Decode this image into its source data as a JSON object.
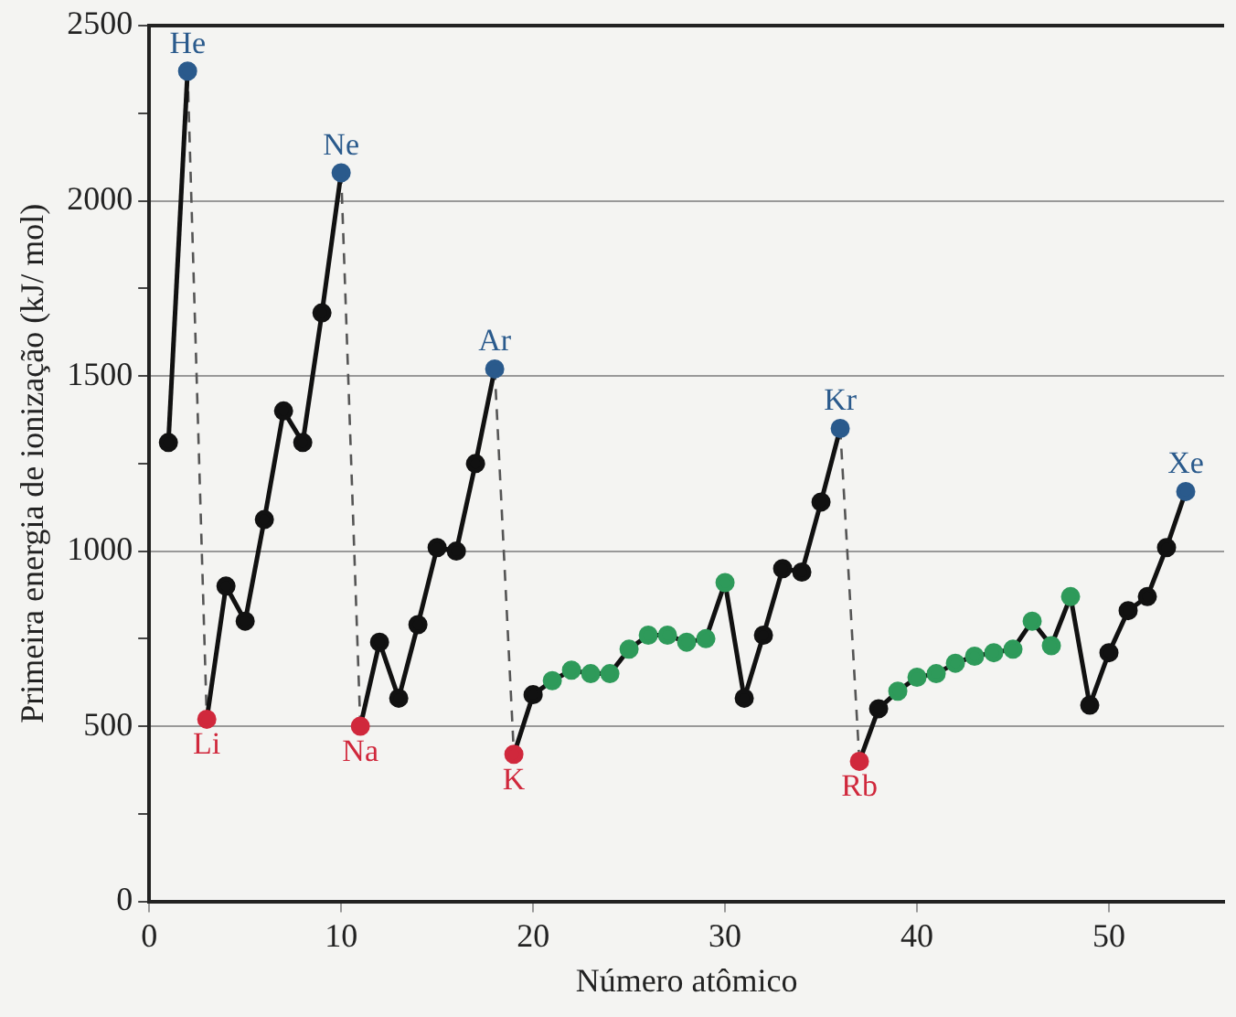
{
  "chart_data": {
    "type": "line",
    "xlabel": "Número atômico",
    "ylabel": "Primeira energia de ionização (kJ/ mol)",
    "xlim": [
      0,
      56
    ],
    "xticks": [
      0,
      10,
      20,
      30,
      40,
      50
    ],
    "ylim": [
      0,
      2500
    ],
    "yticks": [
      0,
      {
        "value": 250,
        "label": null
      },
      500,
      {
        "value": 750,
        "label": null
      },
      1000,
      {
        "value": 1250,
        "label": null
      },
      1500,
      {
        "value": 1750,
        "label": null
      },
      2000,
      {
        "value": 2250,
        "label": null
      },
      2500
    ],
    "grid": "y",
    "marker": "circle",
    "line_style": "solid",
    "series": [
      {
        "x": [
          1,
          2
        ],
        "values": [
          1310,
          2370
        ],
        "color": "#111111",
        "colors": [
          "#111111",
          "#2a5a8c"
        ]
      },
      {
        "x": [
          3,
          4,
          5,
          6,
          7,
          8,
          9,
          10
        ],
        "values": [
          520,
          900,
          800,
          1090,
          1400,
          1310,
          1680,
          2080
        ],
        "color": "#111111",
        "colors": [
          "#d0283c",
          "#111111",
          "#111111",
          "#111111",
          "#111111",
          "#111111",
          "#111111",
          "#2a5a8c"
        ]
      },
      {
        "x": [
          11,
          12,
          13,
          14,
          15,
          16,
          17,
          18
        ],
        "values": [
          500,
          740,
          580,
          790,
          1010,
          1000,
          1250,
          1520
        ],
        "color": "#111111",
        "colors": [
          "#d0283c",
          "#111111",
          "#111111",
          "#111111",
          "#111111",
          "#111111",
          "#111111",
          "#2a5a8c"
        ]
      },
      {
        "x": [
          19,
          20,
          21,
          22,
          23,
          24,
          25,
          26,
          27,
          28,
          29,
          30,
          31,
          32,
          33,
          34,
          35,
          36
        ],
        "values": [
          420,
          590,
          630,
          660,
          650,
          650,
          720,
          760,
          760,
          740,
          750,
          910,
          580,
          760,
          950,
          940,
          1140,
          1350
        ],
        "color": "#111111",
        "colors": [
          "#d0283c",
          "#111111",
          "#2e9a5a",
          "#2e9a5a",
          "#2e9a5a",
          "#2e9a5a",
          "#2e9a5a",
          "#2e9a5a",
          "#2e9a5a",
          "#2e9a5a",
          "#2e9a5a",
          "#2e9a5a",
          "#111111",
          "#111111",
          "#111111",
          "#111111",
          "#111111",
          "#2a5a8c"
        ]
      },
      {
        "x": [
          37,
          38,
          39,
          40,
          41,
          42,
          43,
          44,
          45,
          46,
          47,
          48,
          49,
          50,
          51,
          52,
          53,
          54
        ],
        "values": [
          400,
          550,
          600,
          640,
          650,
          680,
          700,
          710,
          720,
          800,
          730,
          870,
          560,
          710,
          830,
          870,
          1010,
          1170
        ],
        "color": "#111111",
        "colors": [
          "#d0283c",
          "#111111",
          "#2e9a5a",
          "#2e9a5a",
          "#2e9a5a",
          "#2e9a5a",
          "#2e9a5a",
          "#2e9a5a",
          "#2e9a5a",
          "#2e9a5a",
          "#2e9a5a",
          "#2e9a5a",
          "#111111",
          "#111111",
          "#111111",
          "#111111",
          "#111111",
          "#2a5a8c"
        ]
      },
      {
        "x": [
          2,
          3
        ],
        "values": [
          2370,
          520
        ],
        "color": "#555555",
        "line_style": "dashed",
        "marker": "none"
      },
      {
        "x": [
          10,
          11
        ],
        "values": [
          2080,
          500
        ],
        "color": "#555555",
        "line_style": "dashed",
        "marker": "none"
      },
      {
        "x": [
          18,
          19
        ],
        "values": [
          1520,
          420
        ],
        "color": "#555555",
        "line_style": "dashed",
        "marker": "none"
      },
      {
        "x": [
          36,
          37
        ],
        "values": [
          1350,
          400
        ],
        "color": "#555555",
        "line_style": "dashed",
        "marker": "none"
      }
    ],
    "annotations": [
      {
        "text": "He",
        "x": 2,
        "y": 2370
      },
      {
        "text": "Li",
        "x": 3,
        "y": 520
      },
      {
        "text": "Ne",
        "x": 10,
        "y": 2080
      },
      {
        "text": "Na",
        "x": 11,
        "y": 500
      },
      {
        "text": "Ar",
        "x": 18,
        "y": 1520
      },
      {
        "text": "K",
        "x": 19,
        "y": 420
      },
      {
        "text": "Kr",
        "x": 36,
        "y": 1350
      },
      {
        "text": "Rb",
        "x": 37,
        "y": 400
      },
      {
        "text": "Xe",
        "x": 54,
        "y": 1170
      }
    ],
    "legend": false
  }
}
